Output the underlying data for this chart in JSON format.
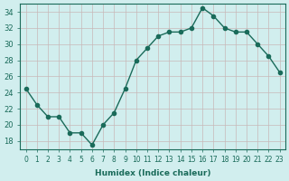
{
  "xlabel": "Humidex (Indice chaleur)",
  "x": [
    0,
    1,
    2,
    3,
    4,
    5,
    6,
    7,
    8,
    9,
    10,
    11,
    12,
    13,
    14,
    15,
    16,
    17,
    18,
    19,
    20,
    21,
    22,
    23
  ],
  "y": [
    24.5,
    22.5,
    21.0,
    21.0,
    19.0,
    19.0,
    17.5,
    20.0,
    21.5,
    24.5,
    28.0,
    29.5,
    31.0,
    31.5,
    31.5,
    32.0,
    34.5,
    33.5,
    32.0,
    31.5,
    31.5,
    30.0,
    28.5,
    26.5
  ],
  "line_color": "#1a6b5a",
  "marker": "o",
  "marker_size": 3,
  "bg_color": "#d1eeee",
  "grid_color": "#c8b8b8",
  "tick_color": "#1a6b5a",
  "label_color": "#1a6b5a",
  "ylim": [
    17,
    35
  ],
  "yticks": [
    18,
    20,
    22,
    24,
    26,
    28,
    30,
    32,
    34
  ],
  "xlim": [
    -0.5,
    23.5
  ],
  "xticks": [
    0,
    1,
    2,
    3,
    4,
    5,
    6,
    7,
    8,
    9,
    10,
    11,
    12,
    13,
    14,
    15,
    16,
    17,
    18,
    19,
    20,
    21,
    22,
    23
  ]
}
